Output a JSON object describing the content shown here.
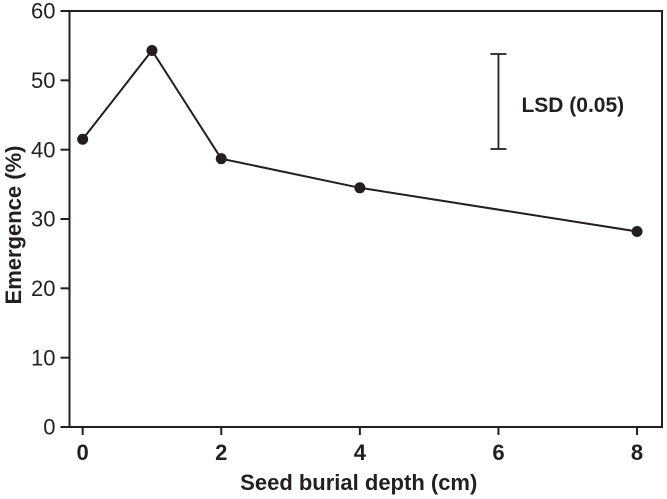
{
  "figure": {
    "background": "#ffffff",
    "ink_color": "#231f20"
  },
  "chart_data": {
    "type": "line",
    "title": "",
    "xlabel": "Seed burial depth (cm)",
    "ylabel": "Emergence (%)",
    "x": [
      0,
      1,
      2,
      4,
      8
    ],
    "y": [
      41.5,
      54.3,
      38.7,
      34.5,
      28.2
    ],
    "series_name": "Emergence",
    "xlim": [
      -0.19,
      8.36
    ],
    "ylim": [
      0,
      60
    ],
    "x_ticks": [
      0,
      2,
      4,
      6,
      8
    ],
    "y_ticks": [
      0,
      10,
      20,
      30,
      40,
      50,
      60
    ],
    "grid": false,
    "legend": "none",
    "marker": "filled-circle",
    "marker_radius": 5.5,
    "line_color": "#231f20",
    "box": true,
    "annotation": {
      "label": "LSD (0.05)",
      "x": 6,
      "y_top": 53.8,
      "y_bottom": 40.1
    }
  }
}
